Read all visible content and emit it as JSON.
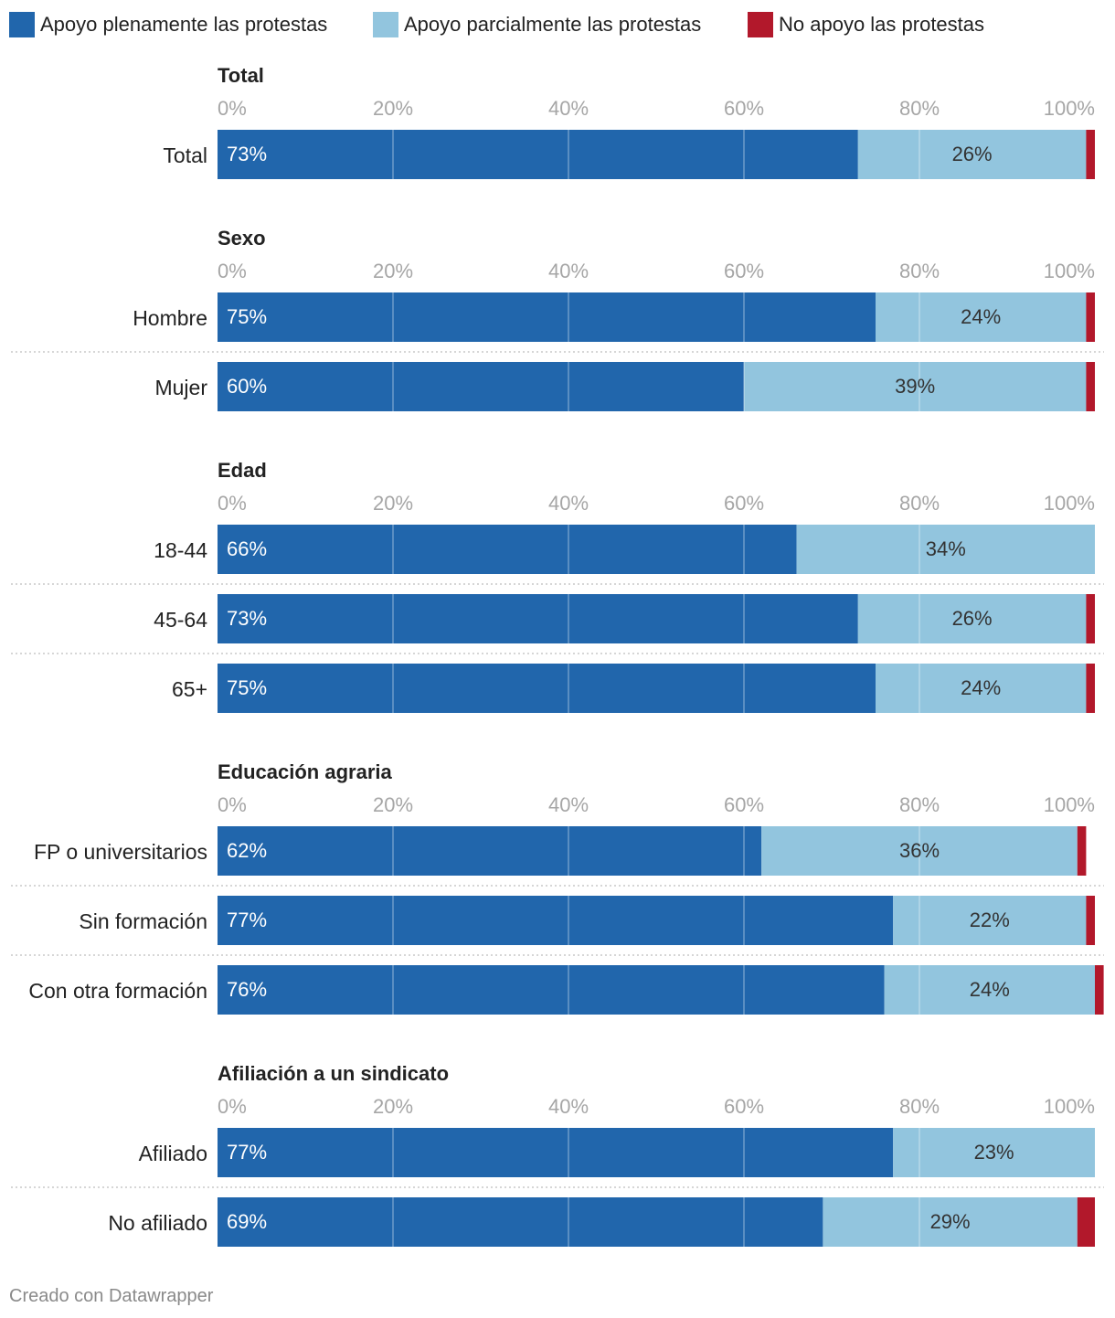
{
  "chart_data": {
    "type": "stacked-bar",
    "orientation": "horizontal",
    "legend": [
      {
        "key": "full",
        "label": "Apoyo plenamente las protestas",
        "color": "#2166ac"
      },
      {
        "key": "partial",
        "label": "Apoyo parcialmente las protestas",
        "color": "#92c5de"
      },
      {
        "key": "none",
        "label": "No apoyo las protestas",
        "color": "#b2182b"
      }
    ],
    "axis": {
      "min": 0,
      "max": 100,
      "ticks": [
        "0%",
        "20%",
        "40%",
        "60%",
        "80%",
        "100%"
      ]
    },
    "groups": [
      {
        "title": "Total",
        "rows": [
          {
            "label": "Total",
            "full": 73,
            "partial": 26,
            "none": 1,
            "full_label": "73%",
            "partial_label": "26%"
          }
        ]
      },
      {
        "title": "Sexo",
        "rows": [
          {
            "label": "Hombre",
            "full": 75,
            "partial": 24,
            "none": 1,
            "full_label": "75%",
            "partial_label": "24%"
          },
          {
            "label": "Mujer",
            "full": 60,
            "partial": 39,
            "none": 1,
            "full_label": "60%",
            "partial_label": "39%"
          }
        ]
      },
      {
        "title": "Edad",
        "rows": [
          {
            "label": "18-44",
            "full": 66,
            "partial": 34,
            "none": 0,
            "full_label": "66%",
            "partial_label": "34%"
          },
          {
            "label": "45-64",
            "full": 73,
            "partial": 26,
            "none": 1,
            "full_label": "73%",
            "partial_label": "26%"
          },
          {
            "label": "65+",
            "full": 75,
            "partial": 24,
            "none": 1,
            "full_label": "75%",
            "partial_label": "24%"
          }
        ]
      },
      {
        "title": "Educación agraria",
        "rows": [
          {
            "label": "FP o universitarios",
            "full": 62,
            "partial": 36,
            "none": 1,
            "full_label": "62%",
            "partial_label": "36%"
          },
          {
            "label": "Sin formación",
            "full": 77,
            "partial": 22,
            "none": 1,
            "full_label": "77%",
            "partial_label": "22%"
          },
          {
            "label": "Con otra formación",
            "full": 76,
            "partial": 24,
            "none": 1,
            "full_label": "76%",
            "partial_label": "24%"
          }
        ]
      },
      {
        "title": "Afiliación a un sindicato",
        "rows": [
          {
            "label": "Afiliado",
            "full": 77,
            "partial": 23,
            "none": 0,
            "full_label": "77%",
            "partial_label": "23%"
          },
          {
            "label": "No afiliado",
            "full": 69,
            "partial": 29,
            "none": 2,
            "full_label": "69%",
            "partial_label": "29%"
          }
        ]
      }
    ],
    "footer": "Creado con Datawrapper"
  }
}
